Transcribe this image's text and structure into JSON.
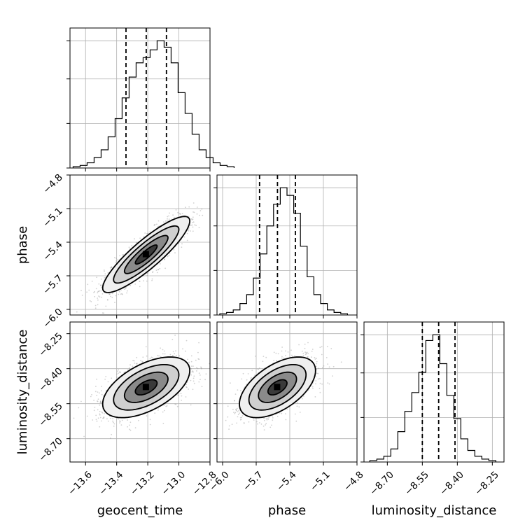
{
  "chart_data": {
    "type": "corner",
    "parameters": [
      "geocent_time",
      "phase",
      "luminosity_distance"
    ],
    "axis_labels": {
      "x": [
        "geocent_time",
        "phase",
        "luminosity_distance"
      ],
      "y": [
        "",
        "phase",
        "luminosity_distance"
      ]
    },
    "ranges": {
      "geocent_time": [
        -13.7,
        -12.8
      ],
      "phase": [
        -6.05,
        -4.8
      ],
      "luminosity_distance": [
        -8.8,
        -8.2
      ]
    },
    "ticks": {
      "geocent_time": [
        {
          "v": -13.6,
          "label": "−13.6"
        },
        {
          "v": -13.4,
          "label": "−13.4"
        },
        {
          "v": -13.2,
          "label": "−13.2"
        },
        {
          "v": -13.0,
          "label": "−13.0"
        },
        {
          "v": -12.8,
          "label": "−12.8"
        }
      ],
      "phase": [
        {
          "v": -6.0,
          "label": "−6.0"
        },
        {
          "v": -5.7,
          "label": "−5.7"
        },
        {
          "v": -5.4,
          "label": "−5.4"
        },
        {
          "v": -5.1,
          "label": "−5.1"
        },
        {
          "v": -4.8,
          "label": "−4.8"
        }
      ],
      "luminosity_distance": [
        {
          "v": -8.7,
          "label": "−8.70"
        },
        {
          "v": -8.55,
          "label": "−8.55"
        },
        {
          "v": -8.4,
          "label": "−8.40"
        },
        {
          "v": -8.25,
          "label": "−8.25"
        }
      ]
    },
    "marginals": {
      "geocent_time": {
        "bin_start": -13.68,
        "bin_width": 0.045,
        "counts": [
          1,
          2,
          4,
          8,
          14,
          24,
          38,
          54,
          70,
          81,
          85,
          91,
          98,
          93,
          81,
          58,
          42,
          26,
          14,
          8,
          4,
          2,
          1
        ],
        "quantiles": [
          -13.34,
          -13.21,
          -13.08
        ]
      },
      "phase": {
        "bin_start": -6.025,
        "bin_width": 0.06,
        "counts": [
          1,
          2,
          4,
          9,
          16,
          29,
          48,
          70,
          87,
          100,
          94,
          80,
          54,
          30,
          16,
          9,
          4,
          2,
          1
        ],
        "quantiles": [
          -5.67,
          -5.51,
          -5.35
        ]
      },
      "luminosity_distance": {
        "bin_start": -8.775,
        "bin_width": 0.03,
        "counts": [
          1,
          2,
          4,
          9,
          21,
          35,
          48,
          62,
          84,
          88,
          68,
          46,
          30,
          16,
          8,
          4,
          2,
          1
        ],
        "quantiles": [
          -8.55,
          -8.48,
          -8.41
        ]
      }
    },
    "pairs": [
      {
        "x": "geocent_time",
        "y": "phase",
        "mean": [
          -13.21,
          -5.51
        ],
        "sd": [
          0.14,
          0.17
        ],
        "corr": 0.88,
        "levels_sigma": [
          0.5,
          1.0,
          1.5,
          2.0
        ]
      },
      {
        "x": "geocent_time",
        "y": "luminosity_distance",
        "mean": [
          -13.21,
          -8.48
        ],
        "sd": [
          0.14,
          0.065
        ],
        "corr": 0.55,
        "levels_sigma": [
          0.5,
          1.0,
          1.5,
          2.0
        ]
      },
      {
        "x": "phase",
        "y": "luminosity_distance",
        "mean": [
          -5.51,
          -8.48
        ],
        "sd": [
          0.17,
          0.065
        ],
        "corr": 0.55,
        "levels_sigma": [
          0.5,
          1.0,
          1.5,
          2.0
        ]
      }
    ]
  }
}
